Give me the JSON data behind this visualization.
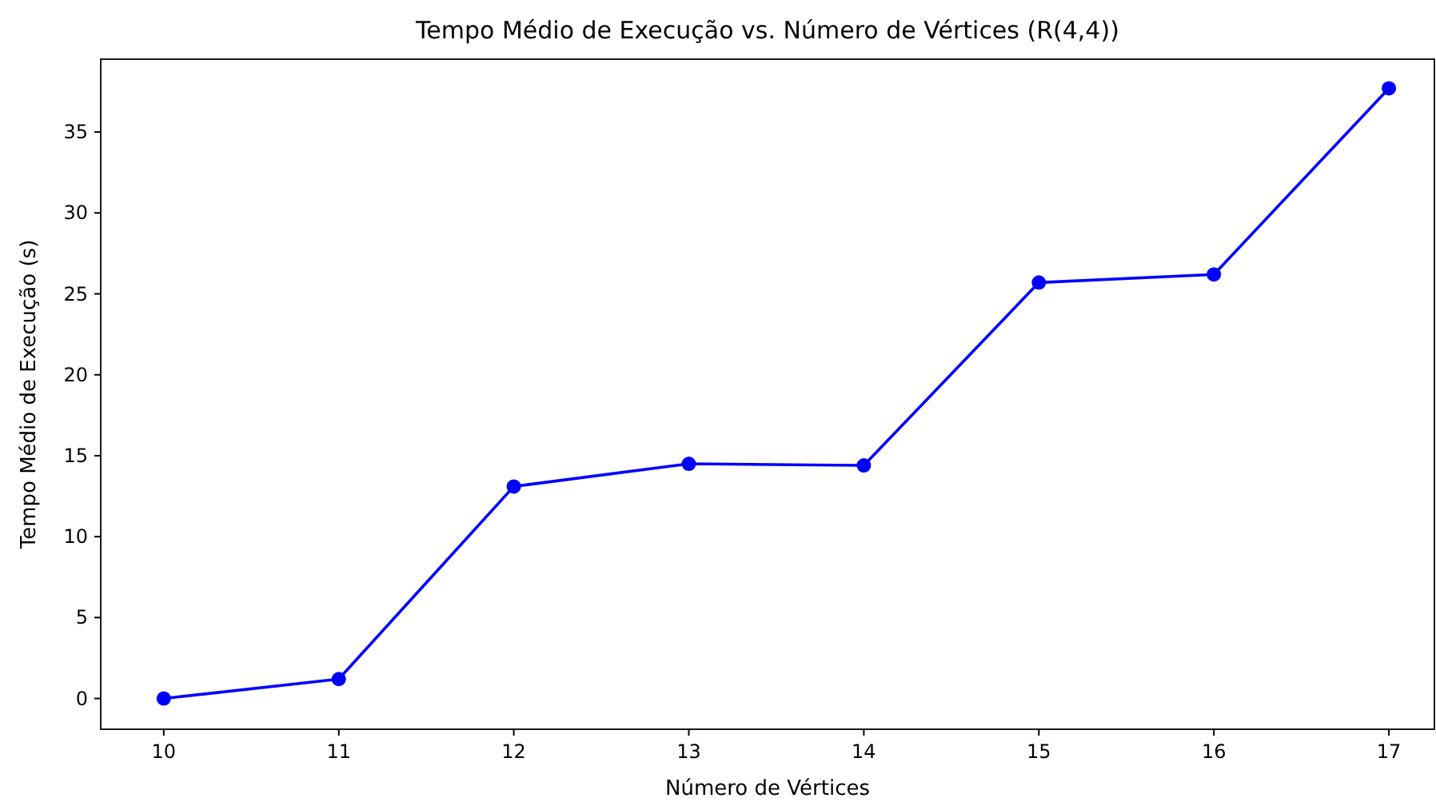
{
  "chart_data": {
    "type": "line",
    "title": "Tempo Médio de Execução vs. Número de Vértices (R(4,4))",
    "xlabel": "Número de Vértices",
    "ylabel": "Tempo Médio de Execução (s)",
    "x": [
      10,
      11,
      12,
      13,
      14,
      15,
      16,
      17
    ],
    "series": [
      {
        "color": "#0000ff",
        "values": [
          0,
          1.2,
          13.1,
          14.5,
          14.4,
          25.7,
          26.2,
          37.7
        ]
      }
    ],
    "xlim": [
      9.64,
      17.26
    ],
    "xticks": [
      10,
      11,
      12,
      13,
      14,
      15,
      16,
      17
    ],
    "ylim": [
      -1.9,
      39.5
    ],
    "yticks": [
      0,
      5,
      10,
      15,
      20,
      25,
      30,
      35
    ],
    "marker": "circle",
    "line_style": "solid"
  }
}
